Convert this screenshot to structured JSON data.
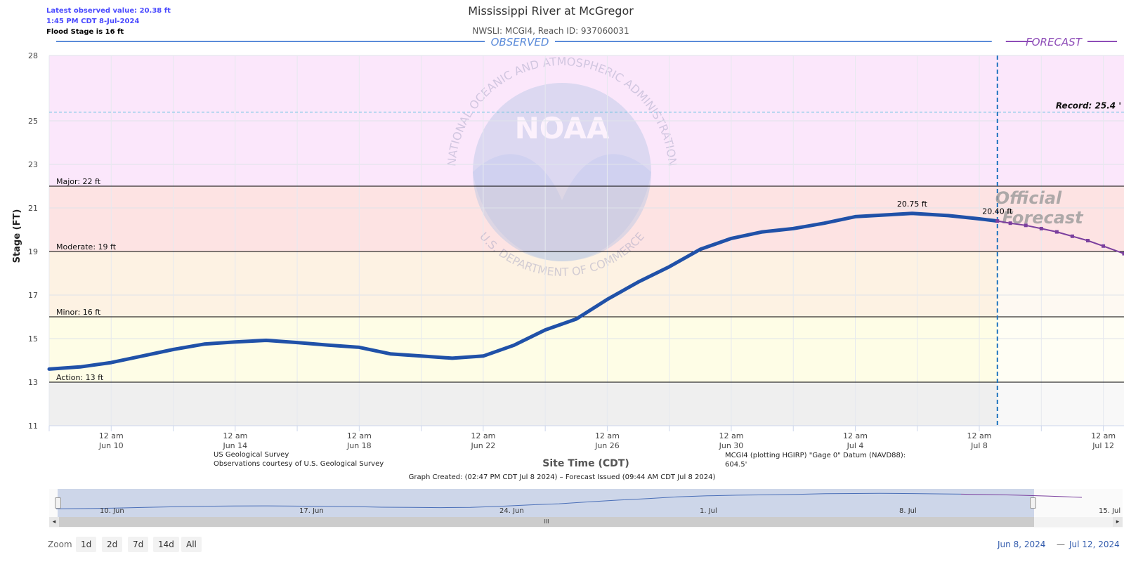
{
  "info": {
    "latest_label": "Latest observed value: 20.38 ft",
    "latest_time": "1:45 PM CDT 8-Jul-2024",
    "flood_stage": "Flood Stage is 16 ft"
  },
  "chart_data": {
    "type": "line",
    "title": "Mississippi River at McGregor",
    "subtitle": "NWSLI: MCGI4, Reach ID: 937060031",
    "xlabel": "Site Time (CDT)",
    "ylabel": "Stage (FT)",
    "ylim": [
      11,
      28
    ],
    "xlim": [
      "2024-06-08",
      "2024-07-12 16:00"
    ],
    "yticks": [
      11,
      13,
      15,
      17,
      19,
      21,
      23,
      25,
      28
    ],
    "xticks": [
      {
        "line1": "12 am",
        "line2": "Jun 10"
      },
      {
        "line1": "12 am",
        "line2": "Jun 14"
      },
      {
        "line1": "12 am",
        "line2": "Jun 18"
      },
      {
        "line1": "12 am",
        "line2": "Jun 22"
      },
      {
        "line1": "12 am",
        "line2": "Jun 26"
      },
      {
        "line1": "12 am",
        "line2": "Jun 30"
      },
      {
        "line1": "12 am",
        "line2": "Jul 4"
      },
      {
        "line1": "12 am",
        "line2": "Jul 8"
      },
      {
        "line1": "12 am",
        "line2": "Jul 12"
      }
    ],
    "grid": true,
    "section_labels": {
      "observed": "OBSERVED",
      "forecast": "FORECAST"
    },
    "forecast_start": "2024-07-08 14:00",
    "bands": [
      {
        "name": "Record",
        "from": 22,
        "to": 28,
        "color": "#fbe7fb"
      },
      {
        "name": "Major",
        "from": 19,
        "to": 22,
        "color": "#fde3e3"
      },
      {
        "name": "Moderate",
        "from": 16,
        "to": 19,
        "color": "#fdf2e3"
      },
      {
        "name": "Minor",
        "from": 13,
        "to": 16,
        "color": "#fefde6"
      },
      {
        "name": "Below",
        "from": 11,
        "to": 13,
        "color": "#efefef"
      }
    ],
    "thresholds": [
      {
        "label": "Major: 22 ft",
        "value": 22
      },
      {
        "label": "Moderate: 19 ft",
        "value": 19
      },
      {
        "label": "Minor: 16 ft",
        "value": 16
      },
      {
        "label": "Action: 13 ft",
        "value": 13
      }
    ],
    "record": {
      "label": "Record: 25.4 '",
      "value": 25.4
    },
    "annotations": [
      {
        "label": "20.75 ft",
        "x": "2024-07-05 20:00",
        "y": 20.75
      },
      {
        "label": "20.40 ft",
        "x": "2024-07-08 14:00",
        "y": 20.4
      }
    ],
    "watermark": {
      "logo": "NOAA",
      "ring_top": "NATIONAL OCEANIC AND ATMOSPHERIC ADMINISTRATION",
      "ring_bottom": "U.S. DEPARTMENT OF COMMERCE"
    },
    "forecast_stamp": [
      "Official",
      "Forecast"
    ],
    "observed": {
      "name": "Observed",
      "color": "#2051a8",
      "x": [
        "2024-06-08",
        "2024-06-09",
        "2024-06-10",
        "2024-06-11",
        "2024-06-12",
        "2024-06-13",
        "2024-06-14",
        "2024-06-15",
        "2024-06-16",
        "2024-06-17",
        "2024-06-18",
        "2024-06-19",
        "2024-06-20",
        "2024-06-21",
        "2024-06-22",
        "2024-06-23",
        "2024-06-24",
        "2024-06-25",
        "2024-06-26",
        "2024-06-27",
        "2024-06-28",
        "2024-06-29",
        "2024-06-30",
        "2024-07-01",
        "2024-07-02",
        "2024-07-03",
        "2024-07-04",
        "2024-07-05",
        "2024-07-05 20:00",
        "2024-07-07",
        "2024-07-08",
        "2024-07-08 14:00"
      ],
      "y": [
        13.6,
        13.7,
        13.9,
        14.2,
        14.5,
        14.75,
        14.85,
        14.92,
        14.82,
        14.7,
        14.6,
        14.3,
        14.2,
        14.1,
        14.2,
        14.7,
        15.4,
        15.9,
        16.8,
        17.6,
        18.3,
        19.1,
        19.6,
        19.9,
        20.05,
        20.3,
        20.6,
        20.68,
        20.75,
        20.65,
        20.5,
        20.4
      ]
    },
    "forecast": {
      "name": "Forecast",
      "color": "#7b3f9e",
      "x": [
        "2024-07-08 14:00",
        "2024-07-09",
        "2024-07-09 12:00",
        "2024-07-10",
        "2024-07-10 12:00",
        "2024-07-11",
        "2024-07-11 12:00",
        "2024-07-12",
        "2024-07-12 16:00"
      ],
      "y": [
        20.4,
        20.3,
        20.2,
        20.05,
        19.9,
        19.7,
        19.5,
        19.25,
        18.9
      ]
    }
  },
  "source": {
    "provider": "US Geological Survey",
    "courtesy": "Observations courtesy of U.S. Geological Survey",
    "datum_line1": "MCGI4 (plotting HGIRP) \"Gage 0\" Datum (NAVD88):",
    "datum_line2": "604.5'",
    "created": "Graph Created: (02:47 PM CDT Jul 8 2024) – Forecast Issued (09:44 AM CDT Jul 8 2024)"
  },
  "navigator": {
    "labels": [
      "10. Jun",
      "17. Jun",
      "24. Jun",
      "1. Jul",
      "8. Jul",
      "15. Jul"
    ],
    "scroll_left": "◂",
    "scroll_right": "▸",
    "scroll_grip": "III"
  },
  "zoom": {
    "label": "Zoom",
    "buttons": [
      "1d",
      "2d",
      "7d",
      "14d",
      "All"
    ]
  },
  "range": {
    "from": "Jun 8, 2024",
    "to": "Jul 12, 2024",
    "sep": "—"
  }
}
